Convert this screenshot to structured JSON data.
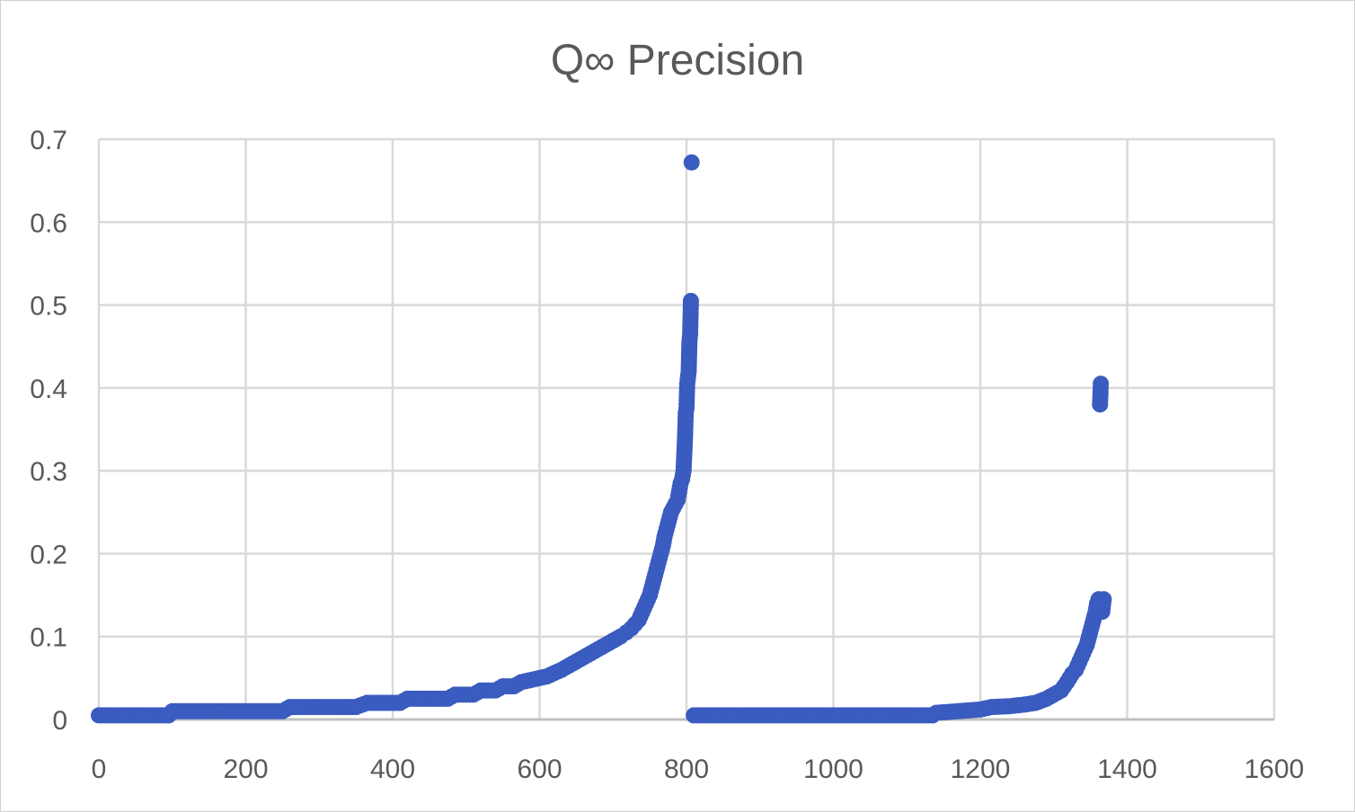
{
  "chart_data": {
    "type": "scatter",
    "title": "Q∞ Precision",
    "xlabel": "",
    "ylabel": "",
    "xlim": [
      0,
      1600
    ],
    "ylim": [
      0,
      0.7
    ],
    "x_ticks": [
      0,
      200,
      400,
      600,
      800,
      1000,
      1200,
      1400,
      1600
    ],
    "y_ticks": [
      0,
      0.1,
      0.2,
      0.3,
      0.4,
      0.5,
      0.6,
      0.7
    ],
    "y_tick_labels": [
      "0",
      "0.1",
      "0.2",
      "0.3",
      "0.4",
      "0.5",
      "0.6",
      "0.7"
    ],
    "grid": true,
    "legend": "none",
    "marker_color": "#3A5BBF",
    "series": [
      {
        "points": [
          [
            0,
            0.005
          ],
          [
            20,
            0.005
          ],
          [
            40,
            0.005
          ],
          [
            60,
            0.005
          ],
          [
            80,
            0.005
          ],
          [
            95,
            0.005
          ],
          [
            100,
            0.01
          ],
          [
            130,
            0.01
          ],
          [
            160,
            0.01
          ],
          [
            190,
            0.01
          ],
          [
            220,
            0.01
          ],
          [
            250,
            0.01
          ],
          [
            260,
            0.015
          ],
          [
            290,
            0.015
          ],
          [
            320,
            0.015
          ],
          [
            350,
            0.015
          ],
          [
            365,
            0.02
          ],
          [
            390,
            0.02
          ],
          [
            410,
            0.02
          ],
          [
            420,
            0.025
          ],
          [
            450,
            0.025
          ],
          [
            475,
            0.025
          ],
          [
            485,
            0.03
          ],
          [
            510,
            0.03
          ],
          [
            520,
            0.035
          ],
          [
            540,
            0.035
          ],
          [
            550,
            0.04
          ],
          [
            565,
            0.04
          ],
          [
            575,
            0.045
          ],
          [
            590,
            0.048
          ],
          [
            600,
            0.05
          ],
          [
            610,
            0.052
          ],
          [
            620,
            0.056
          ],
          [
            630,
            0.06
          ],
          [
            640,
            0.065
          ],
          [
            650,
            0.07
          ],
          [
            660,
            0.075
          ],
          [
            670,
            0.08
          ],
          [
            680,
            0.085
          ],
          [
            690,
            0.09
          ],
          [
            700,
            0.095
          ],
          [
            710,
            0.1
          ],
          [
            718,
            0.105
          ],
          [
            725,
            0.11
          ],
          [
            730,
            0.115
          ],
          [
            735,
            0.12
          ],
          [
            740,
            0.13
          ],
          [
            745,
            0.14
          ],
          [
            750,
            0.15
          ],
          [
            753,
            0.16
          ],
          [
            756,
            0.17
          ],
          [
            759,
            0.18
          ],
          [
            762,
            0.19
          ],
          [
            765,
            0.2
          ],
          [
            768,
            0.21
          ],
          [
            770,
            0.22
          ],
          [
            773,
            0.23
          ],
          [
            776,
            0.24
          ],
          [
            779,
            0.25
          ],
          [
            782,
            0.255
          ],
          [
            785,
            0.26
          ],
          [
            788,
            0.265
          ],
          [
            790,
            0.275
          ],
          [
            792,
            0.285
          ],
          [
            794,
            0.29
          ],
          [
            796,
            0.3
          ],
          [
            798,
            0.34
          ],
          [
            799,
            0.37
          ],
          [
            800,
            0.375
          ],
          [
            801,
            0.405
          ],
          [
            803,
            0.42
          ],
          [
            804,
            0.455
          ],
          [
            805,
            0.465
          ],
          [
            806,
            0.505
          ],
          [
            807,
            0.672
          ],
          [
            810,
            0.005
          ],
          [
            850,
            0.005
          ],
          [
            900,
            0.005
          ],
          [
            950,
            0.005
          ],
          [
            1000,
            0.005
          ],
          [
            1050,
            0.005
          ],
          [
            1100,
            0.005
          ],
          [
            1135,
            0.005
          ],
          [
            1140,
            0.008
          ],
          [
            1170,
            0.01
          ],
          [
            1200,
            0.012
          ],
          [
            1215,
            0.015
          ],
          [
            1240,
            0.016
          ],
          [
            1260,
            0.018
          ],
          [
            1275,
            0.02
          ],
          [
            1290,
            0.025
          ],
          [
            1300,
            0.03
          ],
          [
            1310,
            0.035
          ],
          [
            1318,
            0.045
          ],
          [
            1325,
            0.055
          ],
          [
            1330,
            0.06
          ],
          [
            1335,
            0.07
          ],
          [
            1340,
            0.08
          ],
          [
            1345,
            0.09
          ],
          [
            1348,
            0.1
          ],
          [
            1351,
            0.11
          ],
          [
            1354,
            0.12
          ],
          [
            1357,
            0.13
          ],
          [
            1359,
            0.14
          ],
          [
            1361,
            0.145
          ],
          [
            1363,
            0.38
          ],
          [
            1364,
            0.405
          ],
          [
            1366,
            0.13
          ],
          [
            1368,
            0.145
          ]
        ]
      }
    ]
  }
}
